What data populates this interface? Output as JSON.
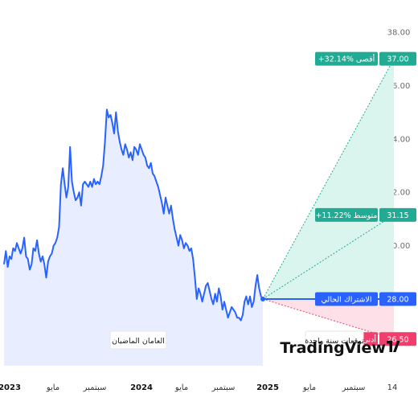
{
  "chart_data": {
    "type": "line",
    "y_axis": {
      "min": 25.5,
      "max": 38.3,
      "ticks": [
        "38.00",
        "36.00",
        "34.00",
        "32.00",
        "30.00"
      ]
    },
    "x_axis": {
      "ticks": [
        {
          "label": "2023",
          "year": true
        },
        {
          "label": "مايو",
          "year": false
        },
        {
          "label": "سبتمبر",
          "year": false
        },
        {
          "label": "2024",
          "year": true
        },
        {
          "label": "مايو",
          "year": false
        },
        {
          "label": "سبتمبر",
          "year": false
        },
        {
          "label": "2025",
          "year": true
        },
        {
          "label": "مايو",
          "year": false
        },
        {
          "label": "سبتمبر",
          "year": false
        },
        {
          "label": "14",
          "year": false
        }
      ]
    },
    "series": [
      {
        "values": [
          29.3,
          29.8,
          29.2,
          29.6,
          29.5,
          29.9,
          29.8,
          30.1,
          29.9,
          29.7,
          29.9,
          30.3,
          29.6,
          29.5,
          29.1,
          29.3,
          29.9,
          29.8,
          30.2,
          29.7,
          29.4,
          29.6,
          29.3,
          28.8,
          29.4,
          29.6,
          29.7,
          30.0,
          30.1,
          30.3,
          30.7,
          32.3,
          32.9,
          32.3,
          31.8,
          32.2,
          33.7,
          32.4,
          32.0,
          31.7,
          31.8,
          32.0,
          31.5,
          32.3,
          32.4,
          32.3,
          32.2,
          32.4,
          32.2,
          32.5,
          32.3,
          32.4,
          32.3,
          32.6,
          33.0,
          33.9,
          35.1,
          34.8,
          34.9,
          34.6,
          34.2,
          35.0,
          34.3,
          33.9,
          33.6,
          33.4,
          33.8,
          33.6,
          33.3,
          33.5,
          33.2,
          33.7,
          33.6,
          33.4,
          33.8,
          33.6,
          33.4,
          33.3,
          33.0,
          32.9,
          33.1,
          32.7,
          32.6,
          32.4,
          32.2,
          31.9,
          31.6,
          31.2,
          31.8,
          31.5,
          31.2,
          31.5,
          31.0,
          30.6,
          30.3,
          30.0,
          30.4,
          30.2,
          29.9,
          30.1,
          30.0,
          29.8,
          29.9,
          29.5,
          28.8,
          28.0,
          28.4,
          28.2,
          27.9,
          28.2,
          28.5,
          28.6,
          28.3,
          28.0,
          27.8,
          28.2,
          27.9,
          28.4,
          28.1,
          27.6,
          27.9,
          27.6,
          27.3,
          27.5,
          27.7,
          27.6,
          27.5,
          27.3,
          27.3,
          27.2,
          27.4,
          27.9,
          28.1,
          27.8,
          28.1,
          27.7,
          27.9,
          28.5,
          28.9,
          28.4,
          28.1,
          28.0
        ],
        "forecast": {
          "start": 28.0,
          "high": 37.0,
          "average": 31.15,
          "low": 26.5
        }
      }
    ],
    "labels": {
      "high_badge": "+32.14% أقصى",
      "high_value": "37.00",
      "avg_badge": "+11.22% متوسط",
      "avg_value": "31.15",
      "current_badge": "الاشتراك الحالي",
      "current_value": "28.00",
      "low_badge": "-5.36% أدنى",
      "low_value": "26.50",
      "past_label": "العامان الماضيان",
      "forecast_label": "توقعات سنة واحدة",
      "watermark": "TradingView"
    }
  },
  "colors": {
    "line": "#2962ff",
    "area": "#e8eeff",
    "high": "#22ab94",
    "high_fill": "#d9f5ee",
    "low": "#f23e6c",
    "low_fill": "#fde0e8",
    "current": "#2962ff"
  }
}
